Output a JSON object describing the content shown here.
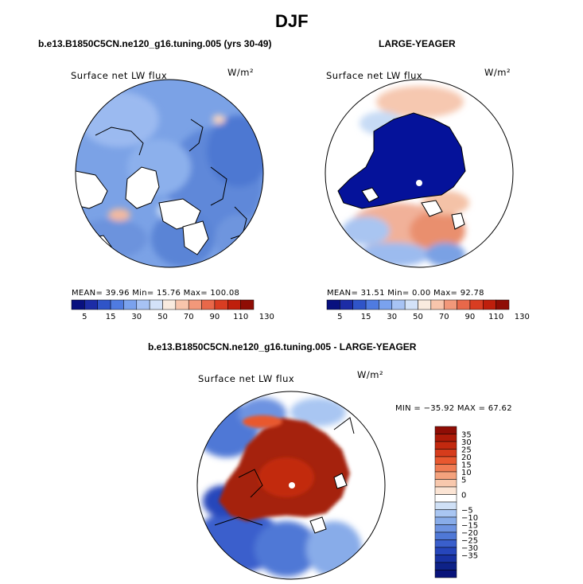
{
  "figure": {
    "title": "DJF",
    "panels": [
      {
        "title": "b.e13.B1850C5CN.ne120_g16.tuning.005 (yrs 30-49)",
        "variable": "Surface net LW flux",
        "units": "W/m²",
        "stats": {
          "mean": "39.96",
          "min": "15.76",
          "max": "100.08"
        },
        "stats_text": "MEAN=  39.96  Min=  15.76  Max= 100.08"
      },
      {
        "title": "LARGE-YEAGER",
        "variable": "Surface net LW flux",
        "units": "W/m²",
        "stats": {
          "mean": "31.51",
          "min": "0.00",
          "max": "92.78"
        },
        "stats_text": "MEAN=  31.51  Min=   0.00  Max=  92.78"
      },
      {
        "title": "b.e13.B1850C5CN.ne120_g16.tuning.005 - LARGE-YEAGER",
        "variable": "Surface net LW flux",
        "units": "W/m²",
        "stats": {
          "min": "-35.92",
          "max": "67.62"
        },
        "stats_text": "MIN = −35.92  MAX =  67.62"
      }
    ]
  },
  "chart_data": [
    {
      "type": "heatmap",
      "projection": "north polar stereographic",
      "title": "b.e13.B1850C5CN.ne120_g16.tuning.005 (yrs 30-49)",
      "colorbar": {
        "orientation": "horizontal",
        "labels": [
          "5",
          "15",
          "30",
          "50",
          "70",
          "90",
          "110",
          "130"
        ],
        "colors": [
          "#08107f",
          "#1c2ca6",
          "#2f54c8",
          "#4f7be0",
          "#7aa2ee",
          "#a7c3f4",
          "#d3e2f8",
          "#f9ebdf",
          "#f8c5ac",
          "#f2987a",
          "#e8684a",
          "#d93d22",
          "#bf1f0c",
          "#8f0d05"
        ]
      },
      "description_values": {
        "mean": 39.96,
        "min": 15.76,
        "max": 100.08
      }
    },
    {
      "type": "heatmap",
      "projection": "north polar stereographic",
      "title": "LARGE-YEAGER",
      "colorbar": {
        "orientation": "horizontal",
        "labels": [
          "5",
          "15",
          "30",
          "50",
          "70",
          "90",
          "110",
          "130"
        ],
        "colors": [
          "#08107f",
          "#1c2ca6",
          "#2f54c8",
          "#4f7be0",
          "#7aa2ee",
          "#a7c3f4",
          "#d3e2f8",
          "#f9ebdf",
          "#f8c5ac",
          "#f2987a",
          "#e8684a",
          "#d93d22",
          "#bf1f0c",
          "#8f0d05"
        ]
      },
      "description_values": {
        "mean": 31.51,
        "min": 0.0,
        "max": 92.78
      }
    },
    {
      "type": "heatmap",
      "projection": "north polar stereographic",
      "title": "b.e13.B1850C5CN.ne120_g16.tuning.005 - LARGE-YEAGER",
      "colorbar": {
        "orientation": "vertical",
        "labels": [
          "35",
          "30",
          "25",
          "20",
          "15",
          "10",
          "5",
          "0",
          "−5",
          "−10",
          "−15",
          "−20",
          "−25",
          "−30",
          "−35"
        ],
        "colors": [
          "#8f0d05",
          "#ad1a08",
          "#c2290f",
          "#d63c1c",
          "#e8582f",
          "#f07c53",
          "#f4a27d",
          "#f8c8ad",
          "#fbe4d4",
          "#ffffff",
          "#cfe0f6",
          "#a9c6f2",
          "#88ace9",
          "#6d93e1",
          "#4f78d6",
          "#3a5fcc",
          "#2646bb",
          "#1832a3",
          "#0e2288",
          "#08137a"
        ]
      },
      "description_values": {
        "min": -35.92,
        "max": 67.62
      }
    }
  ],
  "colors": {
    "ocean_default_blue": "#7ba2e6",
    "arctic_deep_blue": "#05129a",
    "diff_dark_red": "#a5230a"
  }
}
